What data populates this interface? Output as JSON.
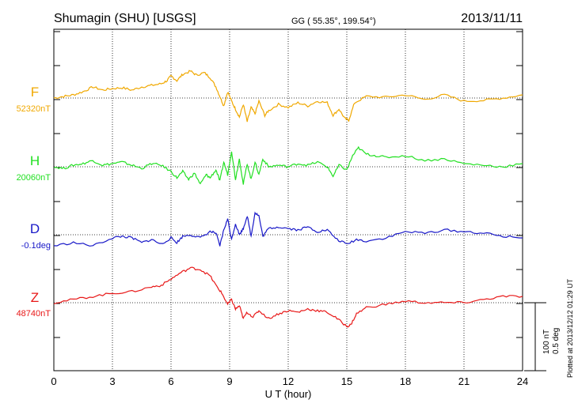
{
  "header": {
    "title": "Shumagin (SHU)  [USGS]",
    "coords": "GG ( 55.35°, 199.54°)",
    "date": "2013/11/11"
  },
  "plotted_note": "Plotted at 2013/12/12 01:29 UT",
  "scale_bar": {
    "line1": "100 nT",
    "line2": "0.5 deg"
  },
  "chart_data": {
    "type": "line",
    "title": "Shumagin (SHU)  [USGS]",
    "xlabel": "U T (hour)",
    "ylabel": "",
    "xlim": [
      0,
      24
    ],
    "x_ticks": [
      0,
      3,
      6,
      9,
      12,
      15,
      18,
      21,
      24
    ],
    "x_tick_labels": [
      "0",
      "3",
      "6",
      "9",
      "12",
      "15",
      "18",
      "21",
      "24"
    ],
    "grid": true,
    "series": [
      {
        "name": "F",
        "baseline_label": "52320nT",
        "color": "#f0a800",
        "points": [
          [
            0,
            0
          ],
          [
            0.5,
            2
          ],
          [
            1,
            4
          ],
          [
            1.5,
            8
          ],
          [
            2,
            14
          ],
          [
            2.5,
            10
          ],
          [
            3,
            12
          ],
          [
            3.5,
            13
          ],
          [
            4,
            10
          ],
          [
            4.5,
            14
          ],
          [
            5,
            16
          ],
          [
            5.5,
            18
          ],
          [
            5.8,
            22
          ],
          [
            6,
            28
          ],
          [
            6.3,
            22
          ],
          [
            6.6,
            30
          ],
          [
            7,
            34
          ],
          [
            7.3,
            29
          ],
          [
            7.7,
            32
          ],
          [
            8,
            26
          ],
          [
            8.3,
            14
          ],
          [
            8.5,
            2
          ],
          [
            8.7,
            -10
          ],
          [
            8.9,
            8
          ],
          [
            9.1,
            -4
          ],
          [
            9.3,
            -14
          ],
          [
            9.5,
            -24
          ],
          [
            9.7,
            -8
          ],
          [
            9.9,
            -30
          ],
          [
            10.1,
            -12
          ],
          [
            10.3,
            -20
          ],
          [
            10.5,
            -4
          ],
          [
            10.8,
            -22
          ],
          [
            11,
            -16
          ],
          [
            11.5,
            -8
          ],
          [
            12,
            -12
          ],
          [
            12.5,
            -6
          ],
          [
            13,
            -10
          ],
          [
            13.5,
            -4
          ],
          [
            14,
            -6
          ],
          [
            14.3,
            -22
          ],
          [
            14.6,
            -14
          ],
          [
            14.9,
            -26
          ],
          [
            15.1,
            -28
          ],
          [
            15.4,
            -6
          ],
          [
            16,
            2
          ],
          [
            17,
            1
          ],
          [
            18,
            4
          ],
          [
            19,
            -2
          ],
          [
            20,
            4
          ],
          [
            21,
            -4
          ],
          [
            22,
            -3
          ],
          [
            23,
            0
          ],
          [
            24,
            4
          ]
        ]
      },
      {
        "name": "H",
        "baseline_label": "20060nT",
        "color": "#22e022",
        "points": [
          [
            0,
            0
          ],
          [
            0.5,
            -2
          ],
          [
            1,
            2
          ],
          [
            1.5,
            4
          ],
          [
            2,
            8
          ],
          [
            2.5,
            2
          ],
          [
            3,
            4
          ],
          [
            3.5,
            6
          ],
          [
            4,
            2
          ],
          [
            4.5,
            -2
          ],
          [
            5,
            4
          ],
          [
            5.5,
            2
          ],
          [
            6,
            -6
          ],
          [
            6.3,
            -14
          ],
          [
            6.6,
            -6
          ],
          [
            6.9,
            -16
          ],
          [
            7.2,
            -8
          ],
          [
            7.5,
            -22
          ],
          [
            7.8,
            -10
          ],
          [
            8,
            -14
          ],
          [
            8.3,
            -4
          ],
          [
            8.5,
            -18
          ],
          [
            8.7,
            6
          ],
          [
            8.9,
            -10
          ],
          [
            9.1,
            20
          ],
          [
            9.3,
            -16
          ],
          [
            9.5,
            10
          ],
          [
            9.7,
            -22
          ],
          [
            9.9,
            4
          ],
          [
            10.1,
            -16
          ],
          [
            10.3,
            6
          ],
          [
            10.5,
            -10
          ],
          [
            10.7,
            10
          ],
          [
            11,
            0
          ],
          [
            11.5,
            2
          ],
          [
            12,
            0
          ],
          [
            12.5,
            4
          ],
          [
            13,
            2
          ],
          [
            13.5,
            6
          ],
          [
            14,
            0
          ],
          [
            14.3,
            -12
          ],
          [
            14.6,
            2
          ],
          [
            15,
            -4
          ],
          [
            15.3,
            14
          ],
          [
            15.6,
            24
          ],
          [
            16,
            16
          ],
          [
            16.5,
            14
          ],
          [
            17,
            12
          ],
          [
            18,
            14
          ],
          [
            19,
            8
          ],
          [
            20,
            10
          ],
          [
            21,
            4
          ],
          [
            22,
            2
          ],
          [
            23,
            0
          ],
          [
            24,
            4
          ]
        ]
      },
      {
        "name": "D",
        "baseline_label": "-0.1deg",
        "color": "#1818c8",
        "points": [
          [
            0,
            -14
          ],
          [
            1,
            -10
          ],
          [
            2,
            -14
          ],
          [
            3,
            -4
          ],
          [
            3.5,
            -2
          ],
          [
            4,
            -4
          ],
          [
            4.5,
            -10
          ],
          [
            5,
            -6
          ],
          [
            5.5,
            -12
          ],
          [
            6,
            -4
          ],
          [
            6.3,
            -10
          ],
          [
            6.6,
            -2
          ],
          [
            7,
            0
          ],
          [
            7.5,
            -4
          ],
          [
            8,
            4
          ],
          [
            8.3,
            2
          ],
          [
            8.5,
            -14
          ],
          [
            8.7,
            6
          ],
          [
            8.9,
            20
          ],
          [
            9.1,
            -6
          ],
          [
            9.3,
            14
          ],
          [
            9.5,
            0
          ],
          [
            9.7,
            8
          ],
          [
            9.9,
            24
          ],
          [
            10.1,
            -2
          ],
          [
            10.3,
            28
          ],
          [
            10.5,
            24
          ],
          [
            10.7,
            -2
          ],
          [
            11,
            8
          ],
          [
            11.5,
            10
          ],
          [
            12,
            8
          ],
          [
            12.5,
            6
          ],
          [
            13,
            10
          ],
          [
            13.5,
            4
          ],
          [
            14,
            6
          ],
          [
            14.5,
            -6
          ],
          [
            15,
            -12
          ],
          [
            15.5,
            -6
          ],
          [
            16,
            -8
          ],
          [
            17,
            -4
          ],
          [
            18,
            4
          ],
          [
            19,
            2
          ],
          [
            20,
            6
          ],
          [
            21,
            4
          ],
          [
            22,
            2
          ],
          [
            23,
            -2
          ],
          [
            24,
            -4
          ]
        ]
      },
      {
        "name": "Z",
        "baseline_label": "48740nT",
        "color": "#e81818",
        "points": [
          [
            0,
            0
          ],
          [
            1,
            4
          ],
          [
            2,
            8
          ],
          [
            3,
            12
          ],
          [
            4,
            14
          ],
          [
            5,
            20
          ],
          [
            5.5,
            22
          ],
          [
            6,
            30
          ],
          [
            6.5,
            38
          ],
          [
            7,
            44
          ],
          [
            7.5,
            42
          ],
          [
            8,
            34
          ],
          [
            8.3,
            22
          ],
          [
            8.6,
            12
          ],
          [
            8.9,
            -2
          ],
          [
            9.1,
            4
          ],
          [
            9.3,
            -8
          ],
          [
            9.5,
            -4
          ],
          [
            9.7,
            -20
          ],
          [
            9.9,
            -12
          ],
          [
            10.2,
            -18
          ],
          [
            10.5,
            -10
          ],
          [
            11,
            -20
          ],
          [
            11.5,
            -14
          ],
          [
            12,
            -10
          ],
          [
            12.5,
            -12
          ],
          [
            13,
            -8
          ],
          [
            13.5,
            -10
          ],
          [
            14,
            -12
          ],
          [
            14.5,
            -20
          ],
          [
            15,
            -30
          ],
          [
            15.2,
            -28
          ],
          [
            15.5,
            -14
          ],
          [
            16,
            -6
          ],
          [
            17,
            -2
          ],
          [
            18,
            2
          ],
          [
            19,
            0
          ],
          [
            20,
            0
          ],
          [
            21,
            0
          ],
          [
            22,
            4
          ],
          [
            23,
            8
          ],
          [
            24,
            8
          ]
        ]
      }
    ]
  },
  "colors": {
    "axis": "#000000",
    "grid": "#000000"
  }
}
